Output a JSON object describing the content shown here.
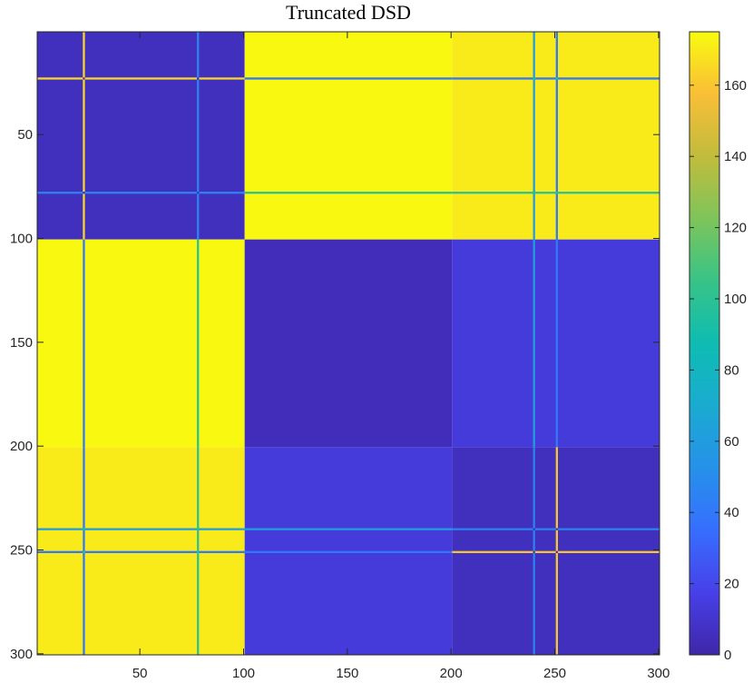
{
  "chart_data": {
    "type": "heatmap",
    "title": "Truncated DSD",
    "xlabel": "",
    "ylabel": "",
    "matrix_size": 300,
    "xlim": [
      0.5,
      300.5
    ],
    "ylim": [
      0.5,
      300.5
    ],
    "y_axis_direction": "top-to-bottom",
    "x_ticks": [
      50,
      100,
      150,
      200,
      250,
      300
    ],
    "y_ticks": [
      50,
      100,
      150,
      200,
      250,
      300
    ],
    "colorbar": {
      "range": [
        0,
        175
      ],
      "ticks": [
        0,
        20,
        40,
        60,
        80,
        100,
        120,
        140,
        160
      ],
      "colormap": "parula",
      "placement": "right"
    },
    "blocks": [
      {
        "rows": [
          1,
          100
        ],
        "cols": [
          1,
          100
        ],
        "value": 6
      },
      {
        "rows": [
          1,
          100
        ],
        "cols": [
          101,
          200
        ],
        "value": 174
      },
      {
        "rows": [
          1,
          100
        ],
        "cols": [
          201,
          300
        ],
        "value": 170
      },
      {
        "rows": [
          101,
          200
        ],
        "cols": [
          1,
          100
        ],
        "value": 174
      },
      {
        "rows": [
          101,
          200
        ],
        "cols": [
          101,
          200
        ],
        "value": 5
      },
      {
        "rows": [
          101,
          200
        ],
        "cols": [
          201,
          300
        ],
        "value": 14
      },
      {
        "rows": [
          201,
          300
        ],
        "cols": [
          1,
          100
        ],
        "value": 170
      },
      {
        "rows": [
          201,
          300
        ],
        "cols": [
          101,
          200
        ],
        "value": 14
      },
      {
        "rows": [
          201,
          300
        ],
        "cols": [
          201,
          300
        ],
        "value": 6
      }
    ],
    "highlighted_nodes": [
      {
        "index": 23,
        "off_diagonal_value": 40,
        "diagonal_value": 165
      },
      {
        "index": 78,
        "off_diagonal_value": 100,
        "diagonal_value": 45
      },
      {
        "index": 240,
        "off_diagonal_value": 60,
        "diagonal_value": 45
      },
      {
        "index": 251,
        "off_diagonal_value": 40,
        "diagonal_value": 160
      }
    ]
  }
}
